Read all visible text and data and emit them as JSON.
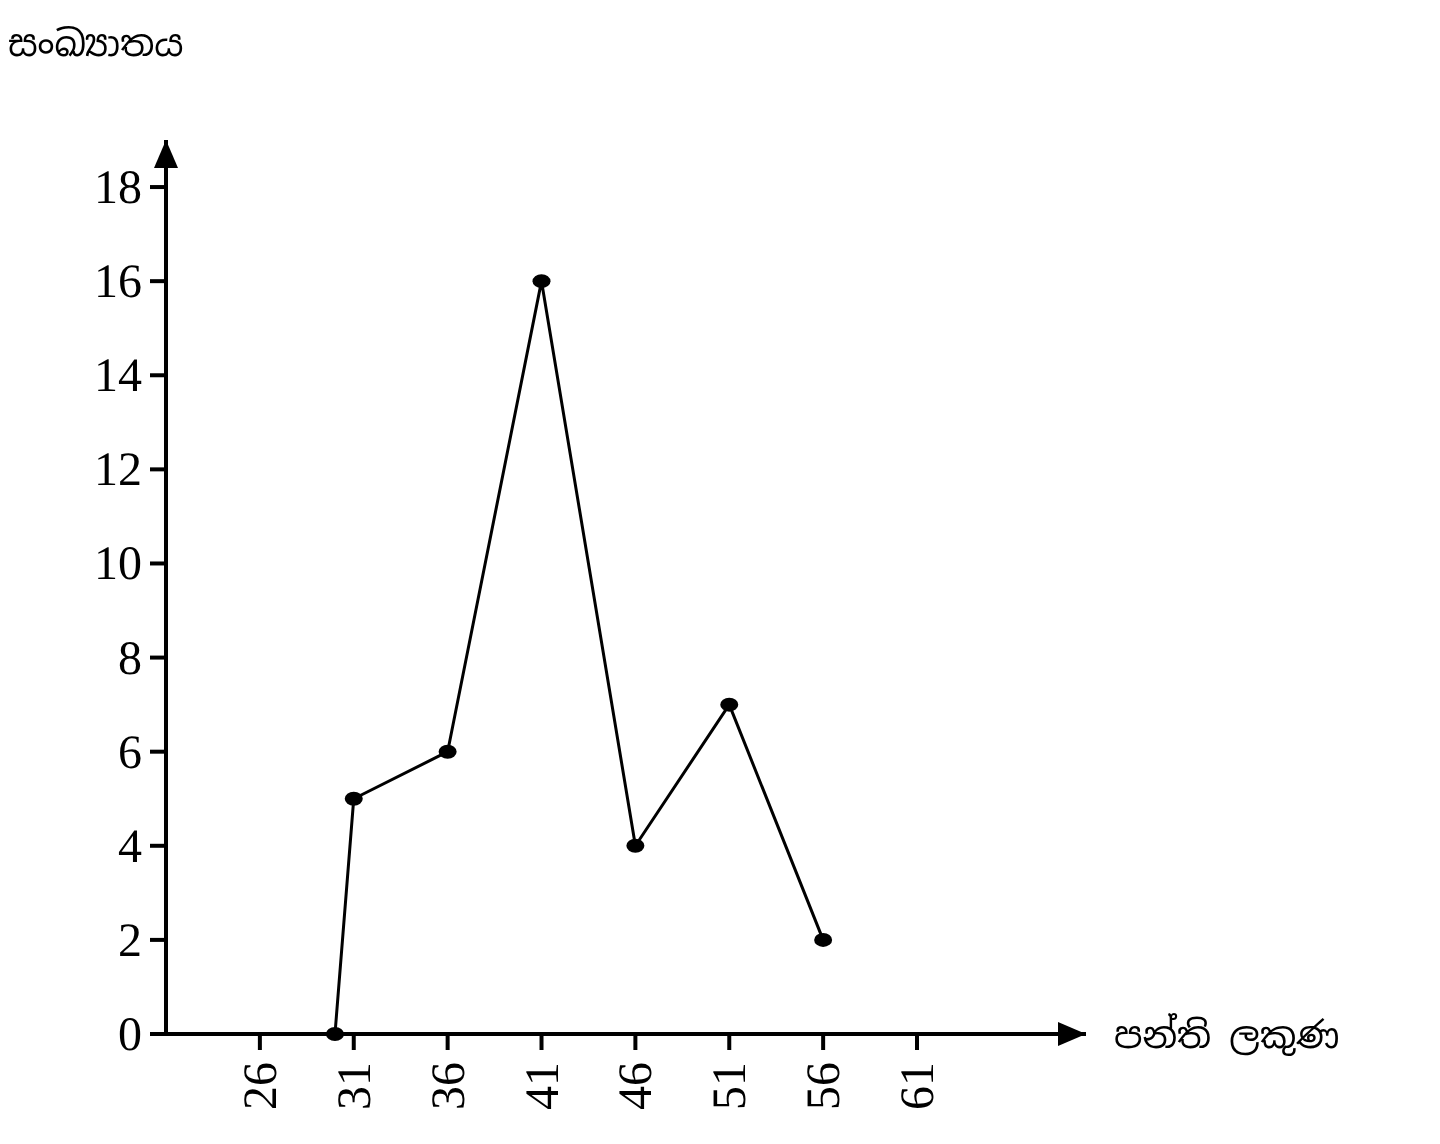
{
  "chart_data": {
    "type": "line",
    "xlabel": "පන්ති ලකුණ",
    "ylabel": "සංඛ්‍යාතය",
    "x": [
      30,
      31,
      36,
      41,
      46,
      51,
      56
    ],
    "series": [
      {
        "color": "#000000",
        "values": [
          0,
          5,
          6,
          16,
          4,
          7,
          2
        ]
      }
    ],
    "xlim": [
      21,
      70
    ],
    "ylim": [
      0,
      19
    ],
    "xticks": [
      26,
      31,
      36,
      41,
      46,
      51,
      56,
      61
    ],
    "yticks": [
      0,
      2,
      4,
      6,
      8,
      10,
      12,
      14,
      16,
      18
    ],
    "marker": "circle",
    "line_style": "solid"
  }
}
